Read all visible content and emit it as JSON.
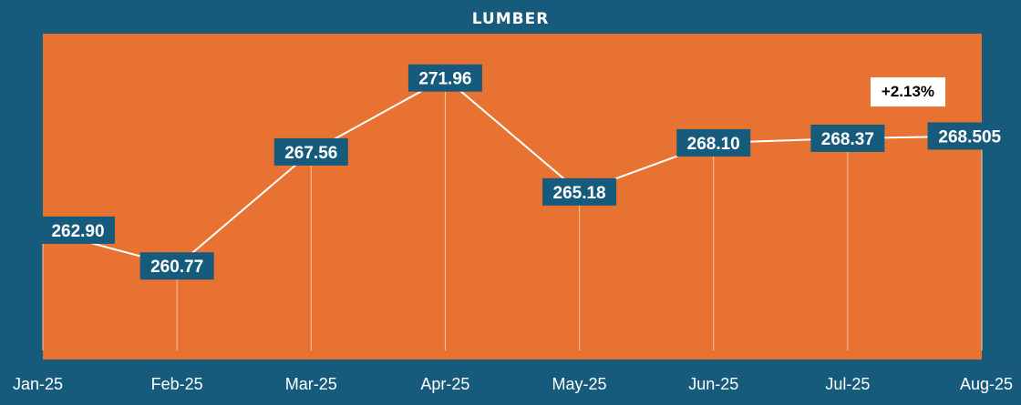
{
  "colors": {
    "background": "#175b7c",
    "plot_area": "#e87231",
    "label_box": "#175b7c",
    "line": "#ffffff",
    "text": "#ffffff"
  },
  "badge": {
    "text": "+2.13%"
  },
  "chart_data": {
    "type": "line",
    "title": "LUMBER",
    "categories": [
      "Jan-25",
      "Feb-25",
      "Mar-25",
      "Apr-25",
      "May-25",
      "Jun-25",
      "Jul-25",
      "Aug-25"
    ],
    "series": [
      {
        "values": [
          262.9,
          260.77,
          267.56,
          271.96,
          265.18,
          268.1,
          268.37,
          268.505
        ],
        "labels": [
          "262.90",
          "260.77",
          "267.56",
          "271.96",
          "265.18",
          "268.10",
          "268.37",
          "268.505"
        ]
      }
    ],
    "xlabel": "",
    "ylabel": "",
    "ylim": [
      255.2,
      274.6
    ],
    "grid": false,
    "legend": "none",
    "drop_lines": true
  }
}
